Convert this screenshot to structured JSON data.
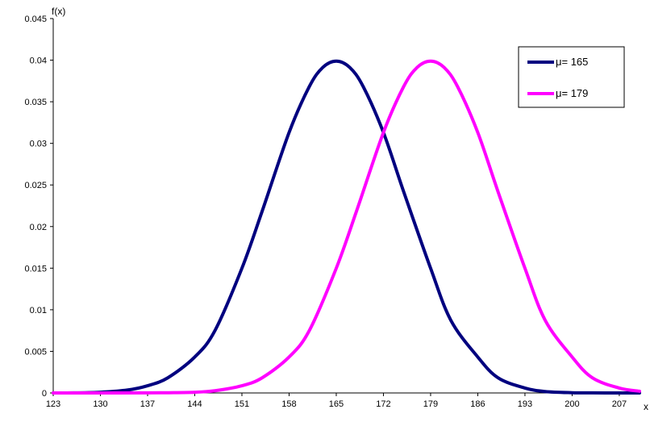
{
  "chart_data": {
    "type": "line",
    "title": "",
    "ylabel": "f(x)",
    "xlabel": "x",
    "xlim": [
      123,
      210
    ],
    "ylim": [
      0,
      0.045
    ],
    "x_ticks": [
      "123",
      "130",
      "137",
      "144",
      "151",
      "158",
      "165",
      "172",
      "179",
      "186",
      "193",
      "200",
      "207"
    ],
    "y_ticks": [
      "0",
      "0.005",
      "0.01",
      "0.015",
      "0.02",
      "0.025",
      "0.03",
      "0.035",
      "0.04",
      "0.045"
    ],
    "grid": false,
    "legend": "top-right",
    "series": [
      {
        "name": "μ= 165",
        "color": "#00007f",
        "x": [
          123,
          126,
          130,
          134,
          137,
          140,
          144,
          147,
          151,
          154,
          158,
          161,
          163,
          165,
          167,
          169,
          172,
          175,
          179,
          182,
          186,
          189,
          193,
          196,
          200,
          203,
          207,
          210
        ],
        "values": [
          0.0,
          1e-05,
          9e-05,
          0.00035,
          0.00087,
          0.00182,
          0.00432,
          0.0075,
          0.01499,
          0.02184,
          0.03131,
          0.03682,
          0.03913,
          0.03989,
          0.03913,
          0.03682,
          0.03131,
          0.0242,
          0.01499,
          0.00874,
          0.00432,
          0.00182,
          0.00059,
          0.00017,
          3e-05,
          1e-05,
          0.0,
          0.0
        ]
      },
      {
        "name": "μ= 179",
        "color": "#ff00ff",
        "x": [
          123,
          130,
          137,
          140,
          144,
          147,
          151,
          154,
          158,
          161,
          165,
          168,
          172,
          175,
          177,
          179,
          181,
          183,
          186,
          189,
          193,
          196,
          200,
          203,
          207,
          210
        ],
        "values": [
          0.0,
          0.0,
          1e-05,
          3e-05,
          9e-05,
          0.00027,
          0.00087,
          0.00182,
          0.00432,
          0.0075,
          0.01499,
          0.02184,
          0.03131,
          0.03682,
          0.03913,
          0.03989,
          0.03913,
          0.03682,
          0.03131,
          0.0242,
          0.01499,
          0.00874,
          0.00432,
          0.00182,
          0.00059,
          0.00021
        ]
      }
    ]
  }
}
